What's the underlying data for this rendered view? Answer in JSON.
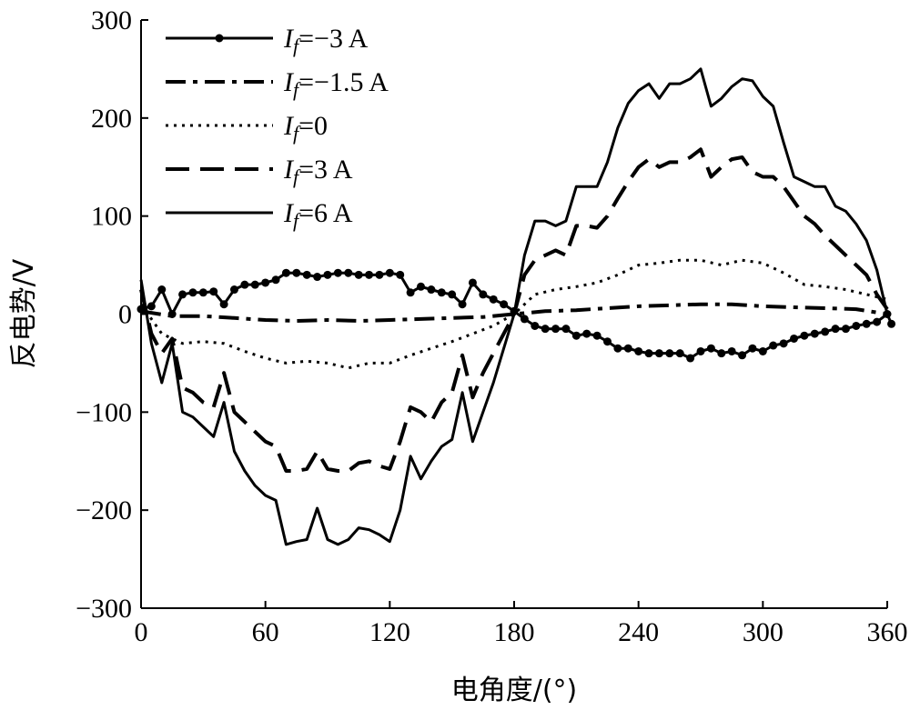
{
  "chart_data": {
    "type": "line",
    "title": "",
    "xlabel": "电角度/(°)",
    "ylabel": "反电势/V",
    "xlim": [
      0,
      360
    ],
    "ylim": [
      -300,
      300
    ],
    "xticks": [
      0,
      60,
      120,
      180,
      240,
      300,
      360
    ],
    "yticks": [
      300,
      200,
      100,
      0,
      -100,
      -200,
      -300
    ],
    "grid": false,
    "legend_position": "top-left",
    "series": [
      {
        "name": "I_f=−3 A",
        "legend": {
          "var": "I",
          "sub": "f",
          "rest": "=−3 A"
        },
        "style": "solid-dot",
        "points": [
          [
            0,
            5
          ],
          [
            5,
            8
          ],
          [
            10,
            25
          ],
          [
            15,
            0
          ],
          [
            20,
            20
          ],
          [
            25,
            22
          ],
          [
            30,
            22
          ],
          [
            35,
            23
          ],
          [
            40,
            10
          ],
          [
            45,
            25
          ],
          [
            50,
            30
          ],
          [
            55,
            30
          ],
          [
            60,
            32
          ],
          [
            65,
            35
          ],
          [
            70,
            42
          ],
          [
            75,
            42
          ],
          [
            80,
            40
          ],
          [
            85,
            38
          ],
          [
            90,
            40
          ],
          [
            95,
            42
          ],
          [
            100,
            42
          ],
          [
            105,
            40
          ],
          [
            110,
            40
          ],
          [
            115,
            40
          ],
          [
            120,
            42
          ],
          [
            125,
            40
          ],
          [
            130,
            22
          ],
          [
            135,
            28
          ],
          [
            140,
            25
          ],
          [
            145,
            22
          ],
          [
            150,
            20
          ],
          [
            155,
            10
          ],
          [
            160,
            32
          ],
          [
            165,
            20
          ],
          [
            170,
            15
          ],
          [
            175,
            10
          ],
          [
            180,
            3
          ],
          [
            185,
            -5
          ],
          [
            190,
            -12
          ],
          [
            195,
            -15
          ],
          [
            200,
            -15
          ],
          [
            205,
            -15
          ],
          [
            210,
            -22
          ],
          [
            215,
            -20
          ],
          [
            220,
            -22
          ],
          [
            225,
            -28
          ],
          [
            230,
            -35
          ],
          [
            235,
            -35
          ],
          [
            240,
            -38
          ],
          [
            245,
            -40
          ],
          [
            250,
            -40
          ],
          [
            255,
            -40
          ],
          [
            260,
            -40
          ],
          [
            265,
            -45
          ],
          [
            270,
            -38
          ],
          [
            275,
            -35
          ],
          [
            280,
            -40
          ],
          [
            285,
            -38
          ],
          [
            290,
            -42
          ],
          [
            295,
            -35
          ],
          [
            300,
            -38
          ],
          [
            305,
            -32
          ],
          [
            310,
            -30
          ],
          [
            315,
            -25
          ],
          [
            320,
            -22
          ],
          [
            325,
            -20
          ],
          [
            330,
            -18
          ],
          [
            335,
            -15
          ],
          [
            340,
            -15
          ],
          [
            345,
            -12
          ],
          [
            350,
            -10
          ],
          [
            355,
            -8
          ],
          [
            360,
            0
          ],
          [
            362,
            -10
          ]
        ]
      },
      {
        "name": "I_f=−1.5 A",
        "legend": {
          "var": "I",
          "sub": "f",
          "rest": "=−1.5 A"
        },
        "style": "dashdot",
        "points": [
          [
            0,
            3
          ],
          [
            15,
            -2
          ],
          [
            30,
            -2
          ],
          [
            45,
            -4
          ],
          [
            60,
            -6
          ],
          [
            75,
            -7
          ],
          [
            90,
            -6
          ],
          [
            105,
            -7
          ],
          [
            120,
            -6
          ],
          [
            135,
            -5
          ],
          [
            150,
            -4
          ],
          [
            165,
            -3
          ],
          [
            180,
            0
          ],
          [
            195,
            3
          ],
          [
            210,
            4
          ],
          [
            225,
            6
          ],
          [
            240,
            8
          ],
          [
            255,
            9
          ],
          [
            270,
            10
          ],
          [
            285,
            10
          ],
          [
            300,
            8
          ],
          [
            315,
            7
          ],
          [
            330,
            6
          ],
          [
            345,
            5
          ],
          [
            360,
            0
          ]
        ]
      },
      {
        "name": "I_f=0",
        "legend": {
          "var": "I",
          "sub": "f",
          "rest": "=0"
        },
        "style": "dotted",
        "points": [
          [
            0,
            10
          ],
          [
            10,
            -20
          ],
          [
            20,
            -30
          ],
          [
            30,
            -28
          ],
          [
            40,
            -30
          ],
          [
            50,
            -38
          ],
          [
            60,
            -45
          ],
          [
            70,
            -50
          ],
          [
            80,
            -48
          ],
          [
            90,
            -50
          ],
          [
            100,
            -55
          ],
          [
            110,
            -50
          ],
          [
            120,
            -50
          ],
          [
            130,
            -42
          ],
          [
            140,
            -35
          ],
          [
            150,
            -28
          ],
          [
            160,
            -20
          ],
          [
            170,
            -12
          ],
          [
            180,
            0
          ],
          [
            190,
            20
          ],
          [
            200,
            25
          ],
          [
            210,
            28
          ],
          [
            220,
            32
          ],
          [
            230,
            40
          ],
          [
            240,
            50
          ],
          [
            250,
            52
          ],
          [
            260,
            55
          ],
          [
            270,
            55
          ],
          [
            280,
            50
          ],
          [
            290,
            55
          ],
          [
            300,
            52
          ],
          [
            310,
            42
          ],
          [
            320,
            30
          ],
          [
            330,
            28
          ],
          [
            340,
            25
          ],
          [
            350,
            20
          ],
          [
            360,
            15
          ]
        ]
      },
      {
        "name": "I_f=3 A",
        "legend": {
          "var": "I",
          "sub": "f",
          "rest": "=3 A"
        },
        "style": "dashed",
        "points": [
          [
            0,
            25
          ],
          [
            5,
            -20
          ],
          [
            10,
            -40
          ],
          [
            15,
            -25
          ],
          [
            20,
            -75
          ],
          [
            25,
            -80
          ],
          [
            30,
            -90
          ],
          [
            35,
            -95
          ],
          [
            40,
            -60
          ],
          [
            45,
            -100
          ],
          [
            50,
            -110
          ],
          [
            55,
            -120
          ],
          [
            60,
            -130
          ],
          [
            65,
            -135
          ],
          [
            70,
            -160
          ],
          [
            75,
            -160
          ],
          [
            80,
            -158
          ],
          [
            85,
            -140
          ],
          [
            90,
            -158
          ],
          [
            95,
            -160
          ],
          [
            100,
            -160
          ],
          [
            105,
            -152
          ],
          [
            110,
            -150
          ],
          [
            115,
            -155
          ],
          [
            120,
            -158
          ],
          [
            125,
            -130
          ],
          [
            130,
            -95
          ],
          [
            135,
            -100
          ],
          [
            140,
            -110
          ],
          [
            145,
            -90
          ],
          [
            150,
            -80
          ],
          [
            155,
            -42
          ],
          [
            160,
            -85
          ],
          [
            165,
            -60
          ],
          [
            170,
            -40
          ],
          [
            175,
            -20
          ],
          [
            180,
            0
          ],
          [
            185,
            40
          ],
          [
            190,
            55
          ],
          [
            195,
            60
          ],
          [
            200,
            65
          ],
          [
            205,
            60
          ],
          [
            210,
            90
          ],
          [
            215,
            90
          ],
          [
            220,
            88
          ],
          [
            225,
            100
          ],
          [
            230,
            118
          ],
          [
            235,
            135
          ],
          [
            240,
            150
          ],
          [
            245,
            158
          ],
          [
            250,
            150
          ],
          [
            255,
            155
          ],
          [
            260,
            155
          ],
          [
            265,
            160
          ],
          [
            270,
            168
          ],
          [
            275,
            140
          ],
          [
            280,
            150
          ],
          [
            285,
            158
          ],
          [
            290,
            160
          ],
          [
            295,
            145
          ],
          [
            300,
            140
          ],
          [
            305,
            140
          ],
          [
            310,
            130
          ],
          [
            315,
            115
          ],
          [
            320,
            100
          ],
          [
            325,
            92
          ],
          [
            330,
            80
          ],
          [
            335,
            70
          ],
          [
            340,
            60
          ],
          [
            345,
            50
          ],
          [
            350,
            40
          ],
          [
            355,
            20
          ],
          [
            360,
            5
          ]
        ]
      },
      {
        "name": "I_f=6 A",
        "legend": {
          "var": "I",
          "sub": "f",
          "rest": "=6 A"
        },
        "style": "solid",
        "points": [
          [
            0,
            35
          ],
          [
            5,
            -30
          ],
          [
            10,
            -70
          ],
          [
            15,
            -30
          ],
          [
            20,
            -100
          ],
          [
            25,
            -105
          ],
          [
            30,
            -115
          ],
          [
            35,
            -125
          ],
          [
            40,
            -90
          ],
          [
            45,
            -140
          ],
          [
            50,
            -160
          ],
          [
            55,
            -175
          ],
          [
            60,
            -185
          ],
          [
            65,
            -190
          ],
          [
            70,
            -235
          ],
          [
            75,
            -232
          ],
          [
            80,
            -230
          ],
          [
            85,
            -198
          ],
          [
            90,
            -230
          ],
          [
            95,
            -235
          ],
          [
            100,
            -230
          ],
          [
            105,
            -218
          ],
          [
            110,
            -220
          ],
          [
            115,
            -225
          ],
          [
            120,
            -232
          ],
          [
            125,
            -200
          ],
          [
            130,
            -145
          ],
          [
            135,
            -168
          ],
          [
            140,
            -150
          ],
          [
            145,
            -135
          ],
          [
            150,
            -128
          ],
          [
            155,
            -80
          ],
          [
            160,
            -130
          ],
          [
            165,
            -100
          ],
          [
            170,
            -70
          ],
          [
            175,
            -35
          ],
          [
            180,
            0
          ],
          [
            185,
            60
          ],
          [
            190,
            95
          ],
          [
            195,
            95
          ],
          [
            200,
            90
          ],
          [
            205,
            95
          ],
          [
            210,
            130
          ],
          [
            215,
            130
          ],
          [
            220,
            130
          ],
          [
            225,
            155
          ],
          [
            230,
            190
          ],
          [
            235,
            215
          ],
          [
            240,
            228
          ],
          [
            245,
            235
          ],
          [
            250,
            220
          ],
          [
            255,
            235
          ],
          [
            260,
            235
          ],
          [
            265,
            240
          ],
          [
            270,
            250
          ],
          [
            275,
            212
          ],
          [
            280,
            220
          ],
          [
            285,
            232
          ],
          [
            290,
            240
          ],
          [
            295,
            238
          ],
          [
            300,
            222
          ],
          [
            305,
            212
          ],
          [
            310,
            175
          ],
          [
            315,
            140
          ],
          [
            320,
            135
          ],
          [
            325,
            130
          ],
          [
            330,
            130
          ],
          [
            335,
            110
          ],
          [
            340,
            105
          ],
          [
            345,
            92
          ],
          [
            350,
            75
          ],
          [
            355,
            45
          ],
          [
            360,
            0
          ]
        ]
      }
    ]
  }
}
